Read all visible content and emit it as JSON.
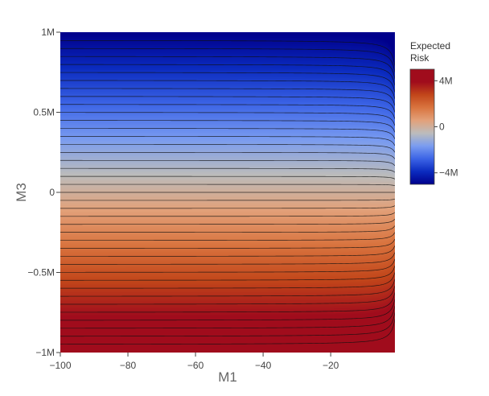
{
  "chart_data": {
    "type": "heatmap",
    "subtype": "contour",
    "title": "",
    "xlabel": "M1",
    "ylabel": "M3",
    "xlim": [
      -100,
      -1
    ],
    "ylim": [
      -1000000,
      1000000
    ],
    "x_ticks": [
      {
        "value": -100,
        "label": "−100"
      },
      {
        "value": -80,
        "label": "−80"
      },
      {
        "value": -60,
        "label": "−60"
      },
      {
        "value": -40,
        "label": "−40"
      },
      {
        "value": -20,
        "label": "−20"
      }
    ],
    "y_ticks": [
      {
        "value": -1000000,
        "label": "−1M"
      },
      {
        "value": -500000,
        "label": "−0.5M"
      },
      {
        "value": 0,
        "label": "0"
      },
      {
        "value": 500000,
        "label": "0.5M"
      },
      {
        "value": 1000000,
        "label": "1M"
      }
    ],
    "z_function": "Expected Risk ≈ −M3·(5 − 1/M1), clipped to colorbar range",
    "z_formula_coefficients": {
      "a": 5,
      "b": 1
    },
    "zlim": [
      -5000000,
      5000000
    ],
    "contour_step": 250000,
    "colorscale": [
      "#00008b",
      "#0b2bbf",
      "#3c64e6",
      "#7a9cf0",
      "#bcbcbc",
      "#e2a17a",
      "#d9743f",
      "#c2461a",
      "#a00c1c",
      "#a00c1c"
    ],
    "colorbar": {
      "title_lines": [
        "Expected",
        "Risk"
      ],
      "ticks": [
        {
          "value": 4000000,
          "label": "4M"
        },
        {
          "value": 0,
          "label": "0"
        },
        {
          "value": -4000000,
          "label": "−4M"
        }
      ]
    },
    "grid": false,
    "legend": "none"
  }
}
